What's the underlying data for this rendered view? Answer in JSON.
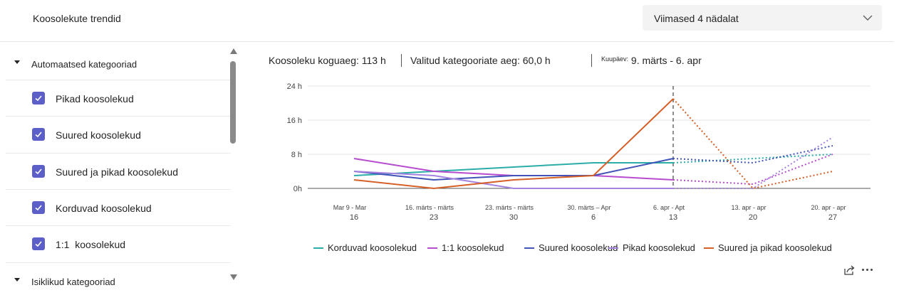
{
  "header": {
    "tab_label": "Koosolekute trendid",
    "dropdown_value": "Viimased 4 nädalat"
  },
  "sidebar": {
    "groups": [
      {
        "label": "Automaatsed kategooriad",
        "items": [
          {
            "label": "Pikad koosolekud",
            "checked": true
          },
          {
            "label": "Suured koosolekud",
            "checked": true
          },
          {
            "label": "Suured ja pikad koosolekud",
            "checked": true
          },
          {
            "label": "Korduvad koosolekud",
            "checked": true
          },
          {
            "label": "1:1  koosolekud",
            "checked": true
          }
        ]
      },
      {
        "label": "Isiklikud kategooriad",
        "items": []
      }
    ]
  },
  "summary": {
    "total": "Koosoleku koguaeg: 113 h",
    "selected": "Valitud kategooriate aeg: 60,0 h",
    "date_label": "Kuupäev:",
    "date_range": "9. märts - 6. apr"
  },
  "colors": {
    "accent": "#5b5fc7",
    "korduvad": "#2bada8",
    "one_on_one": "#b84ccf",
    "suured": "#4254b8",
    "pikad": "#a482e0",
    "suured_ja_pikad": "#d55f26"
  },
  "chart_data": {
    "type": "line",
    "y_ticks": [
      "24 h",
      "16 h",
      "8 h",
      "0h"
    ],
    "ylim": [
      0,
      24
    ],
    "categories": [
      {
        "top": "Mar 9 - Mar",
        "bottom": "16"
      },
      {
        "top": "16. märts - märts",
        "bottom": "23"
      },
      {
        "top": "23. märts - märts",
        "bottom": "30"
      },
      {
        "top": "30. märts – Apr",
        "bottom": "6"
      },
      {
        "top": "6. apr - Apt",
        "bottom": "13"
      },
      {
        "top": "13. apr - apr",
        "bottom": "20"
      },
      {
        "top": "20. apr - apr",
        "bottom": "27"
      }
    ],
    "actual_until_index": 4,
    "grid": "horizontal",
    "legend_position": "bottom",
    "series": [
      {
        "name": "Korduvad koosolekud",
        "color": "#2bada8",
        "values": [
          3,
          4,
          5,
          6,
          6,
          7,
          8
        ]
      },
      {
        "name": "1:1 koosolekud",
        "color": "#b84ccf",
        "values": [
          7,
          4,
          3,
          3,
          2,
          1,
          8
        ]
      },
      {
        "name": "Suured koosolekud",
        "color": "#4254b8",
        "values": [
          4,
          2,
          3,
          3,
          7,
          6,
          10
        ]
      },
      {
        "name": "Pikad koosolekud",
        "color": "#a482e0",
        "values": [
          4,
          3,
          0,
          0,
          0,
          0,
          12
        ]
      },
      {
        "name": "Suured ja pikad koosolekud",
        "color": "#d55f26",
        "values": [
          2,
          0,
          2,
          3,
          21,
          0,
          4
        ]
      }
    ]
  }
}
